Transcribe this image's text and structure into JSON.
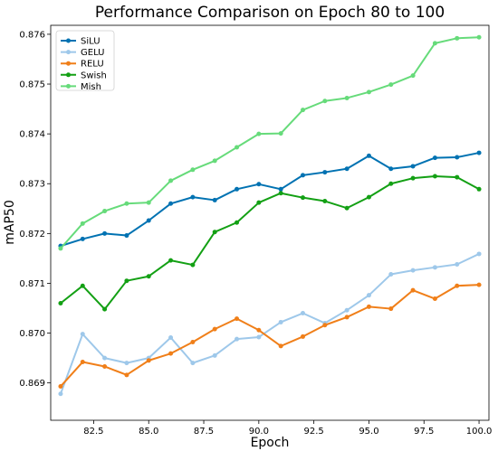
{
  "chart_data": {
    "type": "line",
    "title": "Performance Comparison on Epoch 80 to 100",
    "xlabel": "Epoch",
    "ylabel": "mAP50",
    "xlim": [
      80.55,
      100.45
    ],
    "ylim": [
      0.86825,
      0.87618
    ],
    "xticks": [
      82.5,
      85.0,
      87.5,
      90.0,
      92.5,
      95.0,
      97.5,
      100.0
    ],
    "xtick_labels": [
      "82.5",
      "85.0",
      "87.5",
      "90.0",
      "92.5",
      "95.0",
      "97.5",
      "100.0"
    ],
    "yticks": [
      0.869,
      0.87,
      0.871,
      0.872,
      0.873,
      0.874,
      0.875,
      0.876
    ],
    "ytick_labels": [
      "0.869",
      "0.870",
      "0.871",
      "0.872",
      "0.873",
      "0.874",
      "0.875",
      "0.876"
    ],
    "grid": false,
    "legend_position": "top-left",
    "x": [
      81,
      82,
      83,
      84,
      85,
      86,
      87,
      88,
      89,
      90,
      91,
      92,
      93,
      94,
      95,
      96,
      97,
      98,
      99,
      100
    ],
    "series": [
      {
        "name": "SiLU",
        "color": "#0072b2",
        "values": [
          0.87175,
          0.87189,
          0.872,
          0.87196,
          0.87226,
          0.8726,
          0.87273,
          0.87267,
          0.87289,
          0.87299,
          0.87289,
          0.87317,
          0.87323,
          0.8733,
          0.87356,
          0.8733,
          0.87335,
          0.87352,
          0.87353,
          0.87362
        ]
      },
      {
        "name": "GELU",
        "color": "#9ec8ea",
        "values": [
          0.86878,
          0.86998,
          0.8695,
          0.8694,
          0.8695,
          0.86991,
          0.8694,
          0.86955,
          0.86988,
          0.86992,
          0.87022,
          0.8704,
          0.8702,
          0.87046,
          0.87076,
          0.87118,
          0.87126,
          0.87132,
          0.87138,
          0.87159
        ]
      },
      {
        "name": "RELU",
        "color": "#f07f19",
        "values": [
          0.86893,
          0.86942,
          0.86933,
          0.86916,
          0.86945,
          0.86959,
          0.86982,
          0.87008,
          0.87029,
          0.87006,
          0.86974,
          0.86993,
          0.87016,
          0.87032,
          0.87053,
          0.87049,
          0.87086,
          0.87069,
          0.87095,
          0.87097
        ]
      },
      {
        "name": "Swish",
        "color": "#13a014",
        "values": [
          0.8706,
          0.87095,
          0.87048,
          0.87105,
          0.87114,
          0.87146,
          0.87137,
          0.87203,
          0.87222,
          0.87262,
          0.87281,
          0.87272,
          0.87265,
          0.87251,
          0.87273,
          0.873,
          0.87311,
          0.87315,
          0.87313,
          0.87289
        ]
      },
      {
        "name": "Mish",
        "color": "#66db7a",
        "values": [
          0.8717,
          0.8722,
          0.87245,
          0.8726,
          0.87262,
          0.87306,
          0.87328,
          0.87346,
          0.87373,
          0.874,
          0.87401,
          0.87448,
          0.87466,
          0.87472,
          0.87484,
          0.87499,
          0.87517,
          0.87582,
          0.87592,
          0.87594
        ]
      }
    ]
  }
}
